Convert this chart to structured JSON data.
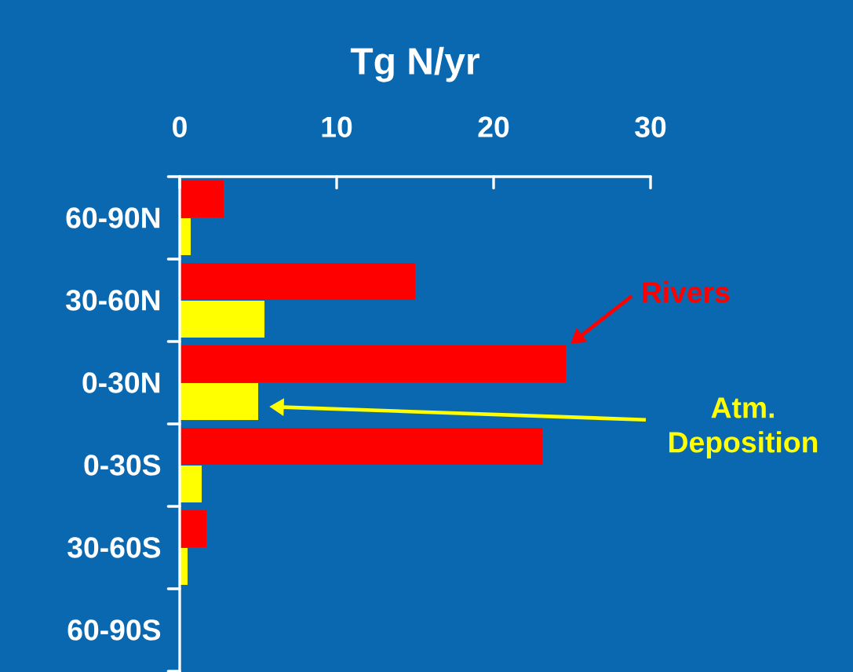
{
  "chart_data": {
    "type": "bar",
    "orientation": "horizontal",
    "xlabel": "Tg N/yr",
    "categories": [
      "60-90N",
      "30-60N",
      "0-30N",
      "0-30S",
      "30-60S",
      "60-90S"
    ],
    "series": [
      {
        "name": "Rivers",
        "color": "#ff0000",
        "values": [
          2.8,
          15.0,
          24.6,
          23.1,
          1.7,
          null
        ]
      },
      {
        "name": "Atm. Deposition",
        "color": "#ffff00",
        "values": [
          0.7,
          5.4,
          5.0,
          1.4,
          0.5,
          null
        ]
      }
    ],
    "xlim": [
      0,
      30
    ],
    "xticks": [
      0,
      10,
      20,
      30
    ]
  }
}
